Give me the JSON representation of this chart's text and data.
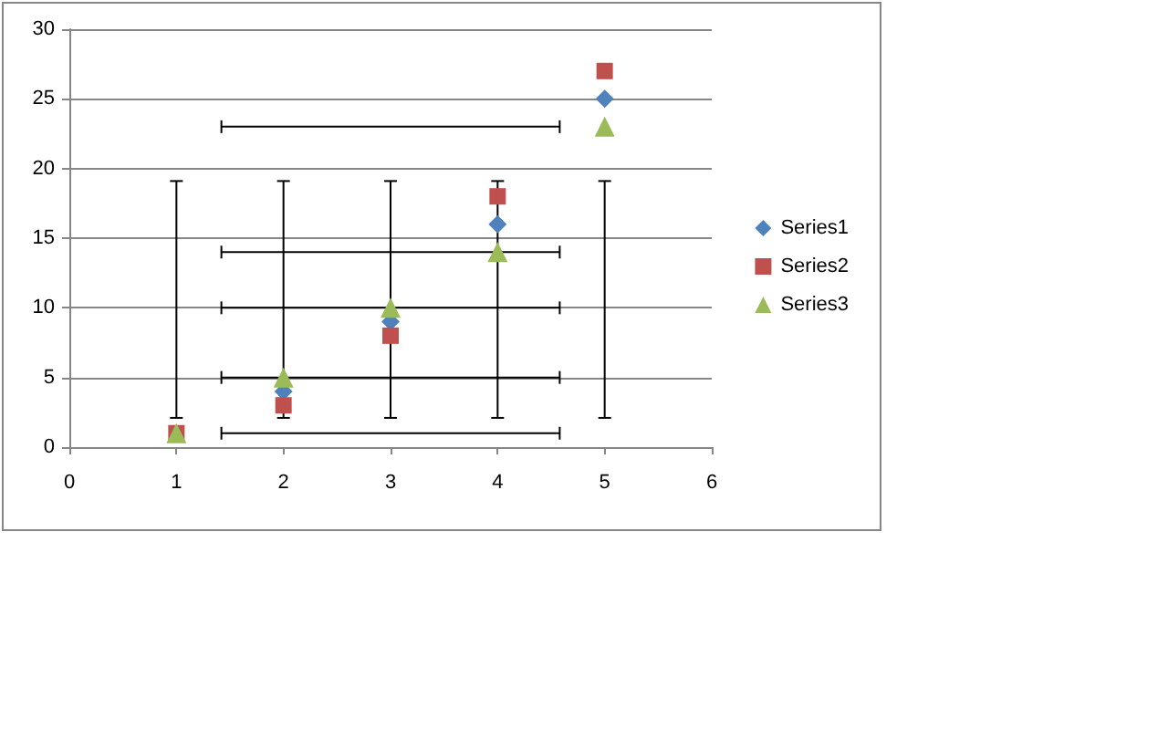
{
  "chart_data": {
    "type": "scatter",
    "x": [
      1,
      2,
      3,
      4,
      5
    ],
    "series": [
      {
        "name": "Series1",
        "color": "#4f81bd",
        "marker": "diamond",
        "values": [
          null,
          4,
          9,
          16,
          25
        ]
      },
      {
        "name": "Series2",
        "color": "#c0504d",
        "marker": "square",
        "values": [
          1,
          3,
          8,
          18,
          27
        ]
      },
      {
        "name": "Series3",
        "color": "#9bbb59",
        "marker": "triangle",
        "values": [
          1,
          5,
          10,
          14,
          23
        ],
        "errors": [
          [
            2.1,
            19.1
          ],
          [
            2.1,
            19.1
          ],
          [
            2.1,
            19.1
          ],
          [
            2.1,
            19.1
          ],
          [
            2.1,
            19.1
          ]
        ],
        "xerrors": [
          [
            1.42,
            4.58
          ],
          [
            1.42,
            4.58
          ],
          [
            1.42,
            4.58
          ],
          [
            1.42,
            4.58
          ],
          [
            1.42,
            4.58
          ]
        ]
      }
    ],
    "xlim": [
      0,
      6
    ],
    "xticks": [
      0,
      1,
      2,
      3,
      4,
      5,
      6
    ],
    "ylim": [
      0,
      30
    ],
    "yticks": [
      0,
      5,
      10,
      15,
      20,
      25,
      30
    ],
    "grid": "y",
    "legend": "right"
  }
}
